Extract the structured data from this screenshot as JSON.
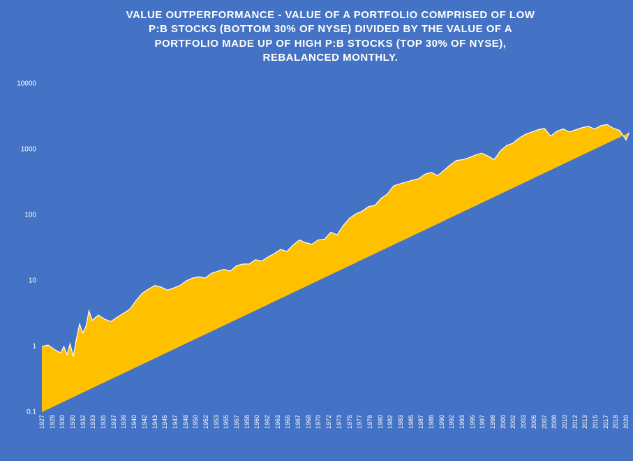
{
  "chart": {
    "type": "area",
    "title_lines": [
      "VALUE OUTPERFORMANCE  - VALUE OF A PORTFOLIO COMPRISED OF LOW",
      "P:B STOCKS (BOTTOM 30% OF NYSE) DIVIDED BY THE VALUE OF A",
      "PORTFOLIO MADE UP OF HIGH P:B STOCKS (TOP 30% OF NYSE),",
      "REBALANCED MONTHLY."
    ],
    "title_fontsize": 15,
    "title_color": "#ffffff",
    "background_color": "#4472c4",
    "area_fill_color": "#ffc000",
    "line_color": "#ffffff",
    "line_width": 1.2,
    "grid_color": "#4472c4",
    "axis_label_color": "#ffffff",
    "axis_label_fontsize": 10,
    "y_scale": "log",
    "y_ticks": [
      0.1,
      1,
      10,
      100,
      1000,
      10000
    ],
    "y_tick_labels": [
      "0.1",
      "1",
      "10",
      "100",
      "1000",
      "10000"
    ],
    "y_min": 0.1,
    "y_max": 10000,
    "x_years_start": 1927,
    "x_years_end": 2020,
    "x_tick_labels": [
      "1927",
      "1928",
      "1930",
      "1930",
      "1932",
      "1933",
      "1935",
      "1937",
      "1938",
      "1940",
      "1942",
      "1943",
      "1945",
      "1947",
      "1948",
      "1950",
      "1952",
      "1953",
      "1955",
      "1957",
      "1958",
      "1960",
      "1962",
      "1963",
      "1965",
      "1967",
      "1968",
      "1970",
      "1972",
      "1973",
      "1975",
      "1977",
      "1978",
      "1980",
      "1982",
      "1983",
      "1985",
      "1987",
      "1988",
      "1990",
      "1992",
      "1993",
      "1995",
      "1997",
      "1998",
      "2000",
      "2002",
      "2003",
      "2005",
      "2007",
      "2008",
      "2010",
      "2012",
      "2013",
      "2015",
      "2017",
      "2018",
      "2020"
    ],
    "series": {
      "years": [
        1927,
        1928,
        1929,
        1930,
        1930.5,
        1931,
        1931.5,
        1932,
        1932.5,
        1933,
        1933.5,
        1934,
        1934.5,
        1935,
        1936,
        1937,
        1938,
        1939,
        1940,
        1941,
        1942,
        1943,
        1944,
        1945,
        1946,
        1947,
        1948,
        1949,
        1950,
        1951,
        1952,
        1953,
        1954,
        1955,
        1956,
        1957,
        1958,
        1959,
        1960,
        1961,
        1962,
        1963,
        1964,
        1965,
        1966,
        1967,
        1968,
        1969,
        1970,
        1971,
        1972,
        1973,
        1974,
        1975,
        1976,
        1977,
        1978,
        1979,
        1980,
        1981,
        1982,
        1983,
        1984,
        1985,
        1986,
        1987,
        1988,
        1989,
        1990,
        1991,
        1992,
        1993,
        1994,
        1995,
        1996,
        1997,
        1998,
        1999,
        2000,
        2001,
        2002,
        2003,
        2004,
        2005,
        2006,
        2007,
        2008,
        2009,
        2010,
        2011,
        2012,
        2013,
        2014,
        2015,
        2016,
        2017,
        2018,
        2019,
        2020,
        2020.5,
        2020.9
      ],
      "values": [
        1.0,
        1.05,
        0.9,
        0.8,
        1.0,
        0.75,
        1.1,
        0.7,
        1.3,
        2.2,
        1.6,
        2.0,
        3.5,
        2.5,
        3.0,
        2.6,
        2.4,
        2.8,
        3.2,
        3.7,
        5.0,
        6.5,
        7.5,
        8.5,
        8.0,
        7.2,
        7.8,
        8.5,
        10,
        11,
        11.5,
        11,
        13,
        14,
        15,
        14,
        17,
        18,
        18,
        21,
        20,
        23,
        26,
        30,
        28,
        35,
        42,
        38,
        36,
        42,
        43,
        55,
        50,
        70,
        90,
        105,
        115,
        135,
        140,
        180,
        210,
        280,
        300,
        320,
        340,
        360,
        420,
        450,
        400,
        480,
        580,
        680,
        700,
        750,
        820,
        880,
        800,
        700,
        950,
        1150,
        1250,
        1500,
        1700,
        1850,
        2000,
        2100,
        1600,
        1900,
        2050,
        1850,
        2000,
        2150,
        2250,
        2050,
        2300,
        2400,
        2100,
        1950,
        1400,
        1800
      ]
    }
  }
}
